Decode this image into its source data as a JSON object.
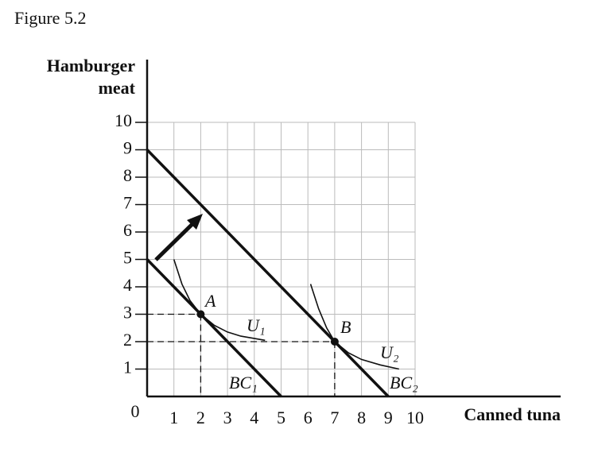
{
  "chart_data": {
    "type": "line",
    "title": "Figure 5.2",
    "xlabel": "Canned tuna",
    "ylabel": [
      "Hamburger",
      "meat"
    ],
    "xlim": [
      0,
      10
    ],
    "ylim": [
      0,
      10
    ],
    "xticks": [
      0,
      1,
      2,
      3,
      4,
      5,
      6,
      7,
      8,
      9,
      10
    ],
    "yticks": [
      1,
      2,
      3,
      4,
      5,
      6,
      7,
      8,
      9,
      10
    ],
    "grid": true,
    "series": [
      {
        "name": "BC₁",
        "color": "#111111",
        "x": [
          0,
          5
        ],
        "values": [
          5,
          0
        ]
      },
      {
        "name": "BC₂",
        "color": "#111111",
        "x": [
          0,
          9
        ],
        "values": [
          9,
          0
        ]
      },
      {
        "name": "U₁",
        "color": "#111111",
        "x": [
          1,
          1.3,
          1.6,
          2,
          2.5,
          3,
          3.5,
          4.4
        ],
        "values": [
          5.0,
          4.1,
          3.5,
          3.0,
          2.6,
          2.35,
          2.2,
          2.05
        ]
      },
      {
        "name": "U₂",
        "color": "#111111",
        "x": [
          6.1,
          6.4,
          6.7,
          7,
          7.5,
          8,
          8.7,
          9.4
        ],
        "values": [
          4.1,
          3.2,
          2.5,
          2.0,
          1.6,
          1.35,
          1.15,
          1.0
        ]
      }
    ],
    "points": [
      {
        "name": "A",
        "x": 2,
        "y": 3
      },
      {
        "name": "B",
        "x": 7,
        "y": 2
      }
    ]
  }
}
